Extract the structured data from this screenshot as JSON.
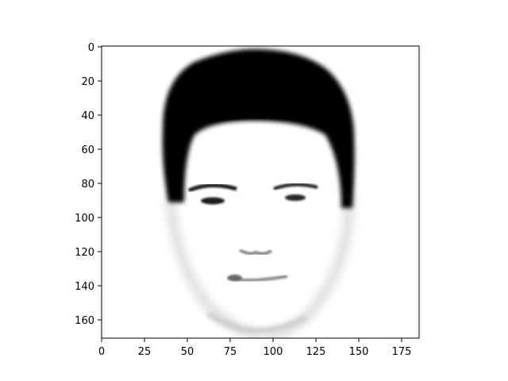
{
  "image": {
    "subject": "face-portrait",
    "colormap": "gray_r",
    "width_units": 186,
    "height_units": 171
  },
  "axes": {
    "x_ticks": [
      "0",
      "25",
      "50",
      "75",
      "100",
      "125",
      "150",
      "175"
    ],
    "y_ticks": [
      "0",
      "20",
      "40",
      "60",
      "80",
      "100",
      "120",
      "140",
      "160"
    ]
  }
}
